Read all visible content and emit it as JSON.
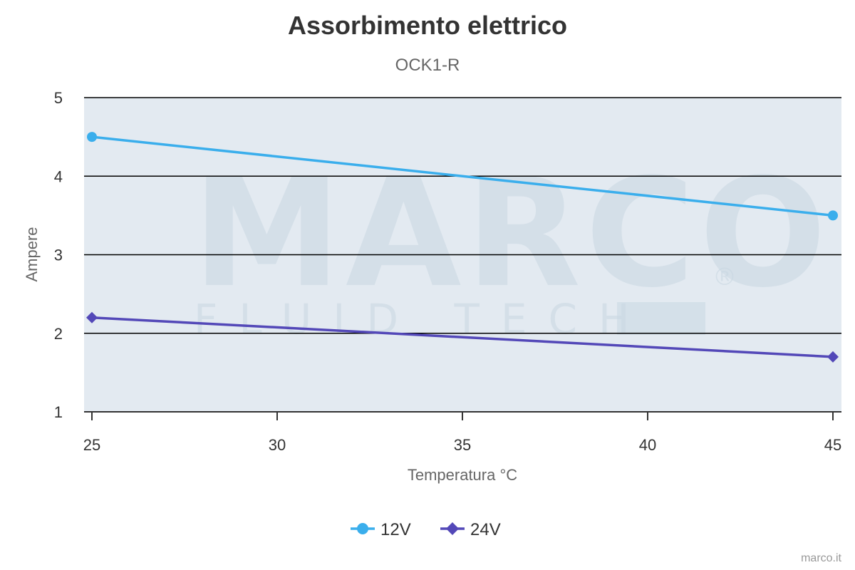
{
  "chart_data": {
    "type": "line",
    "title": "Assorbimento elettrico",
    "subtitle": "OCK1-R",
    "xlabel": "Temperatura °C",
    "ylabel": "Ampere",
    "xlim": [
      25,
      45
    ],
    "ylim": [
      1,
      5
    ],
    "x_ticks": [
      "25",
      "30",
      "35",
      "40",
      "45"
    ],
    "y_ticks": [
      "1",
      "2",
      "3",
      "4",
      "5"
    ],
    "grid": true,
    "legend_position": "bottom-center",
    "series": [
      {
        "name": "12V",
        "color": "#3aaeec",
        "marker": "circle",
        "points": [
          {
            "x": 25,
            "y": 4.5
          },
          {
            "x": 45,
            "y": 3.5
          }
        ]
      },
      {
        "name": "24V",
        "color": "#5348b8",
        "marker": "diamond",
        "points": [
          {
            "x": 25,
            "y": 2.2
          },
          {
            "x": 45,
            "y": 1.7
          }
        ]
      }
    ]
  },
  "watermark": {
    "main": "MARCO",
    "sub": "FLUID TECH",
    "mark": "®"
  },
  "credit": "marco.it",
  "colors": {
    "plot_background": "#e3eaf1",
    "grid": "#000000",
    "watermark": "#c8d7e2"
  }
}
